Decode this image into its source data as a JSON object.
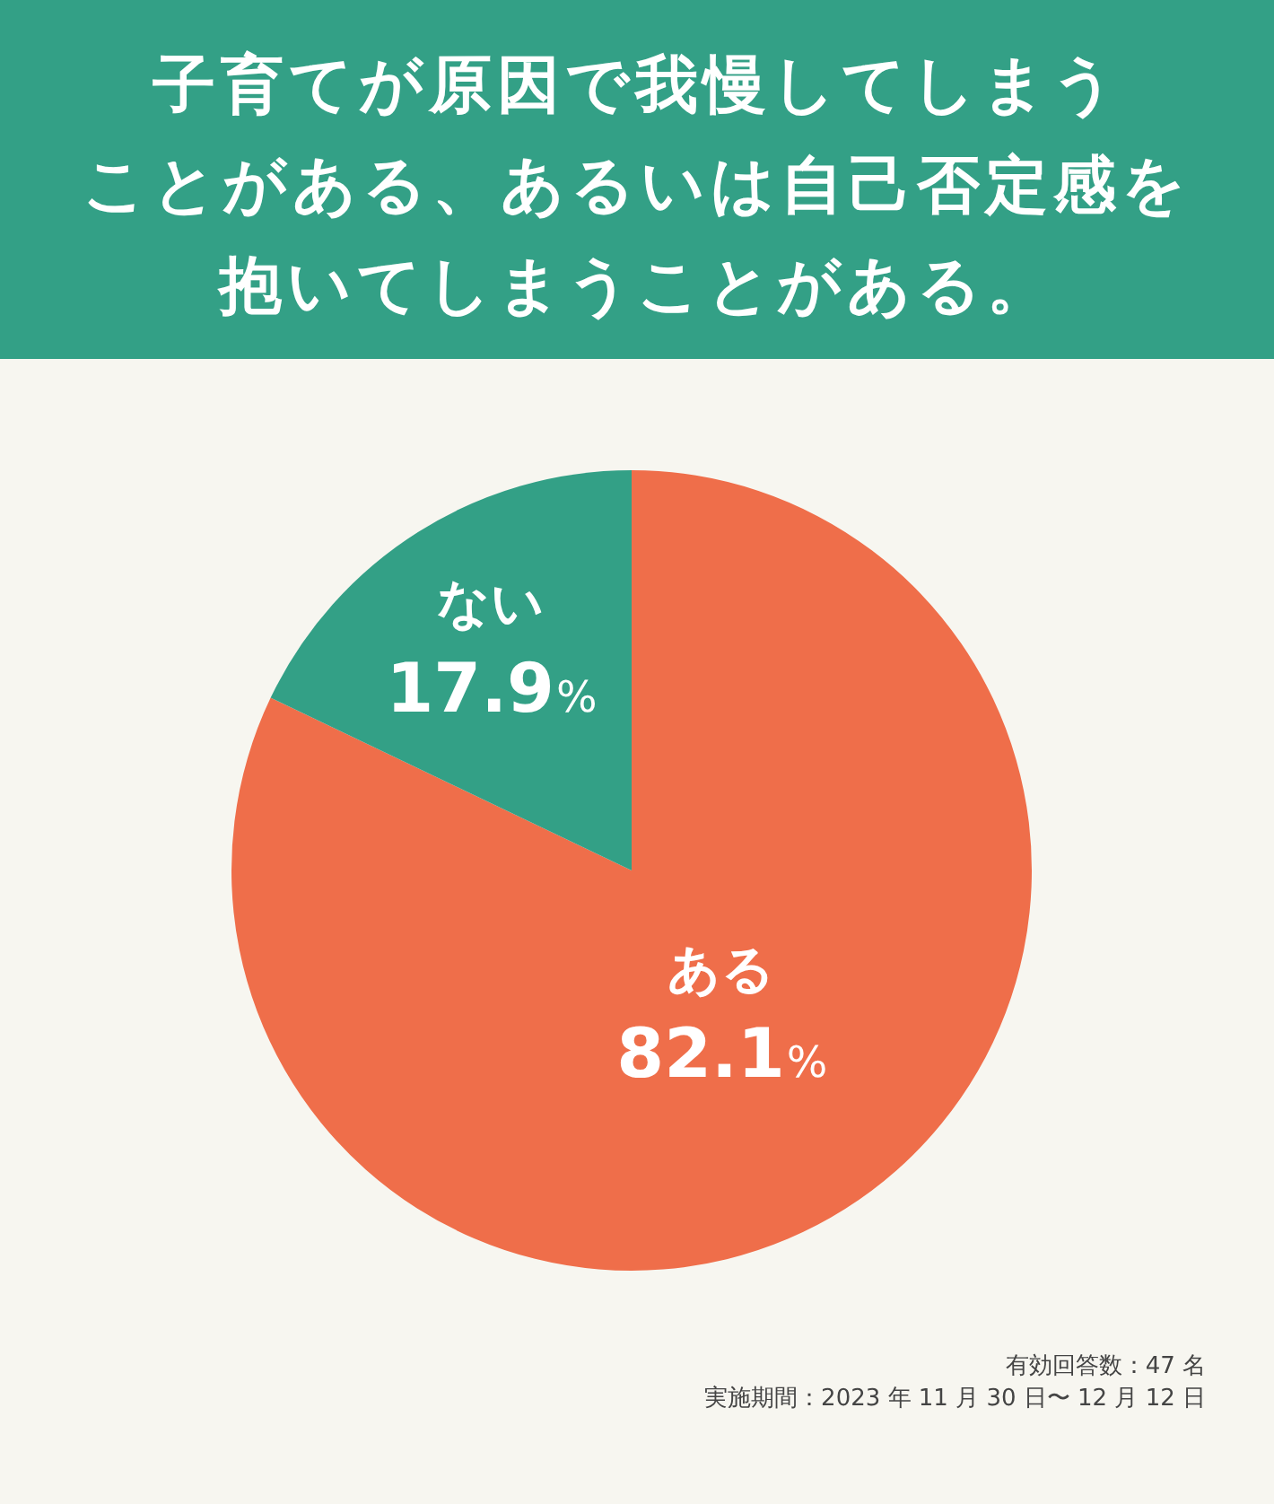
{
  "chart_data": {
    "type": "pie",
    "title": "子育てが原因で我慢してしまうことがある、あるいは自己否定感を抱いてしまうことがある。",
    "categories": [
      "ある",
      "ない"
    ],
    "values": [
      82.1,
      17.9
    ],
    "colors": [
      "#ef6e4a",
      "#33a086"
    ],
    "value_labels": [
      "82.1%",
      "17.9%"
    ],
    "legend": false,
    "annotations": [
      "有効回答数：47 名",
      "実施期間：2023 年 11 月 30 日〜 12 月 12 日"
    ]
  }
}
